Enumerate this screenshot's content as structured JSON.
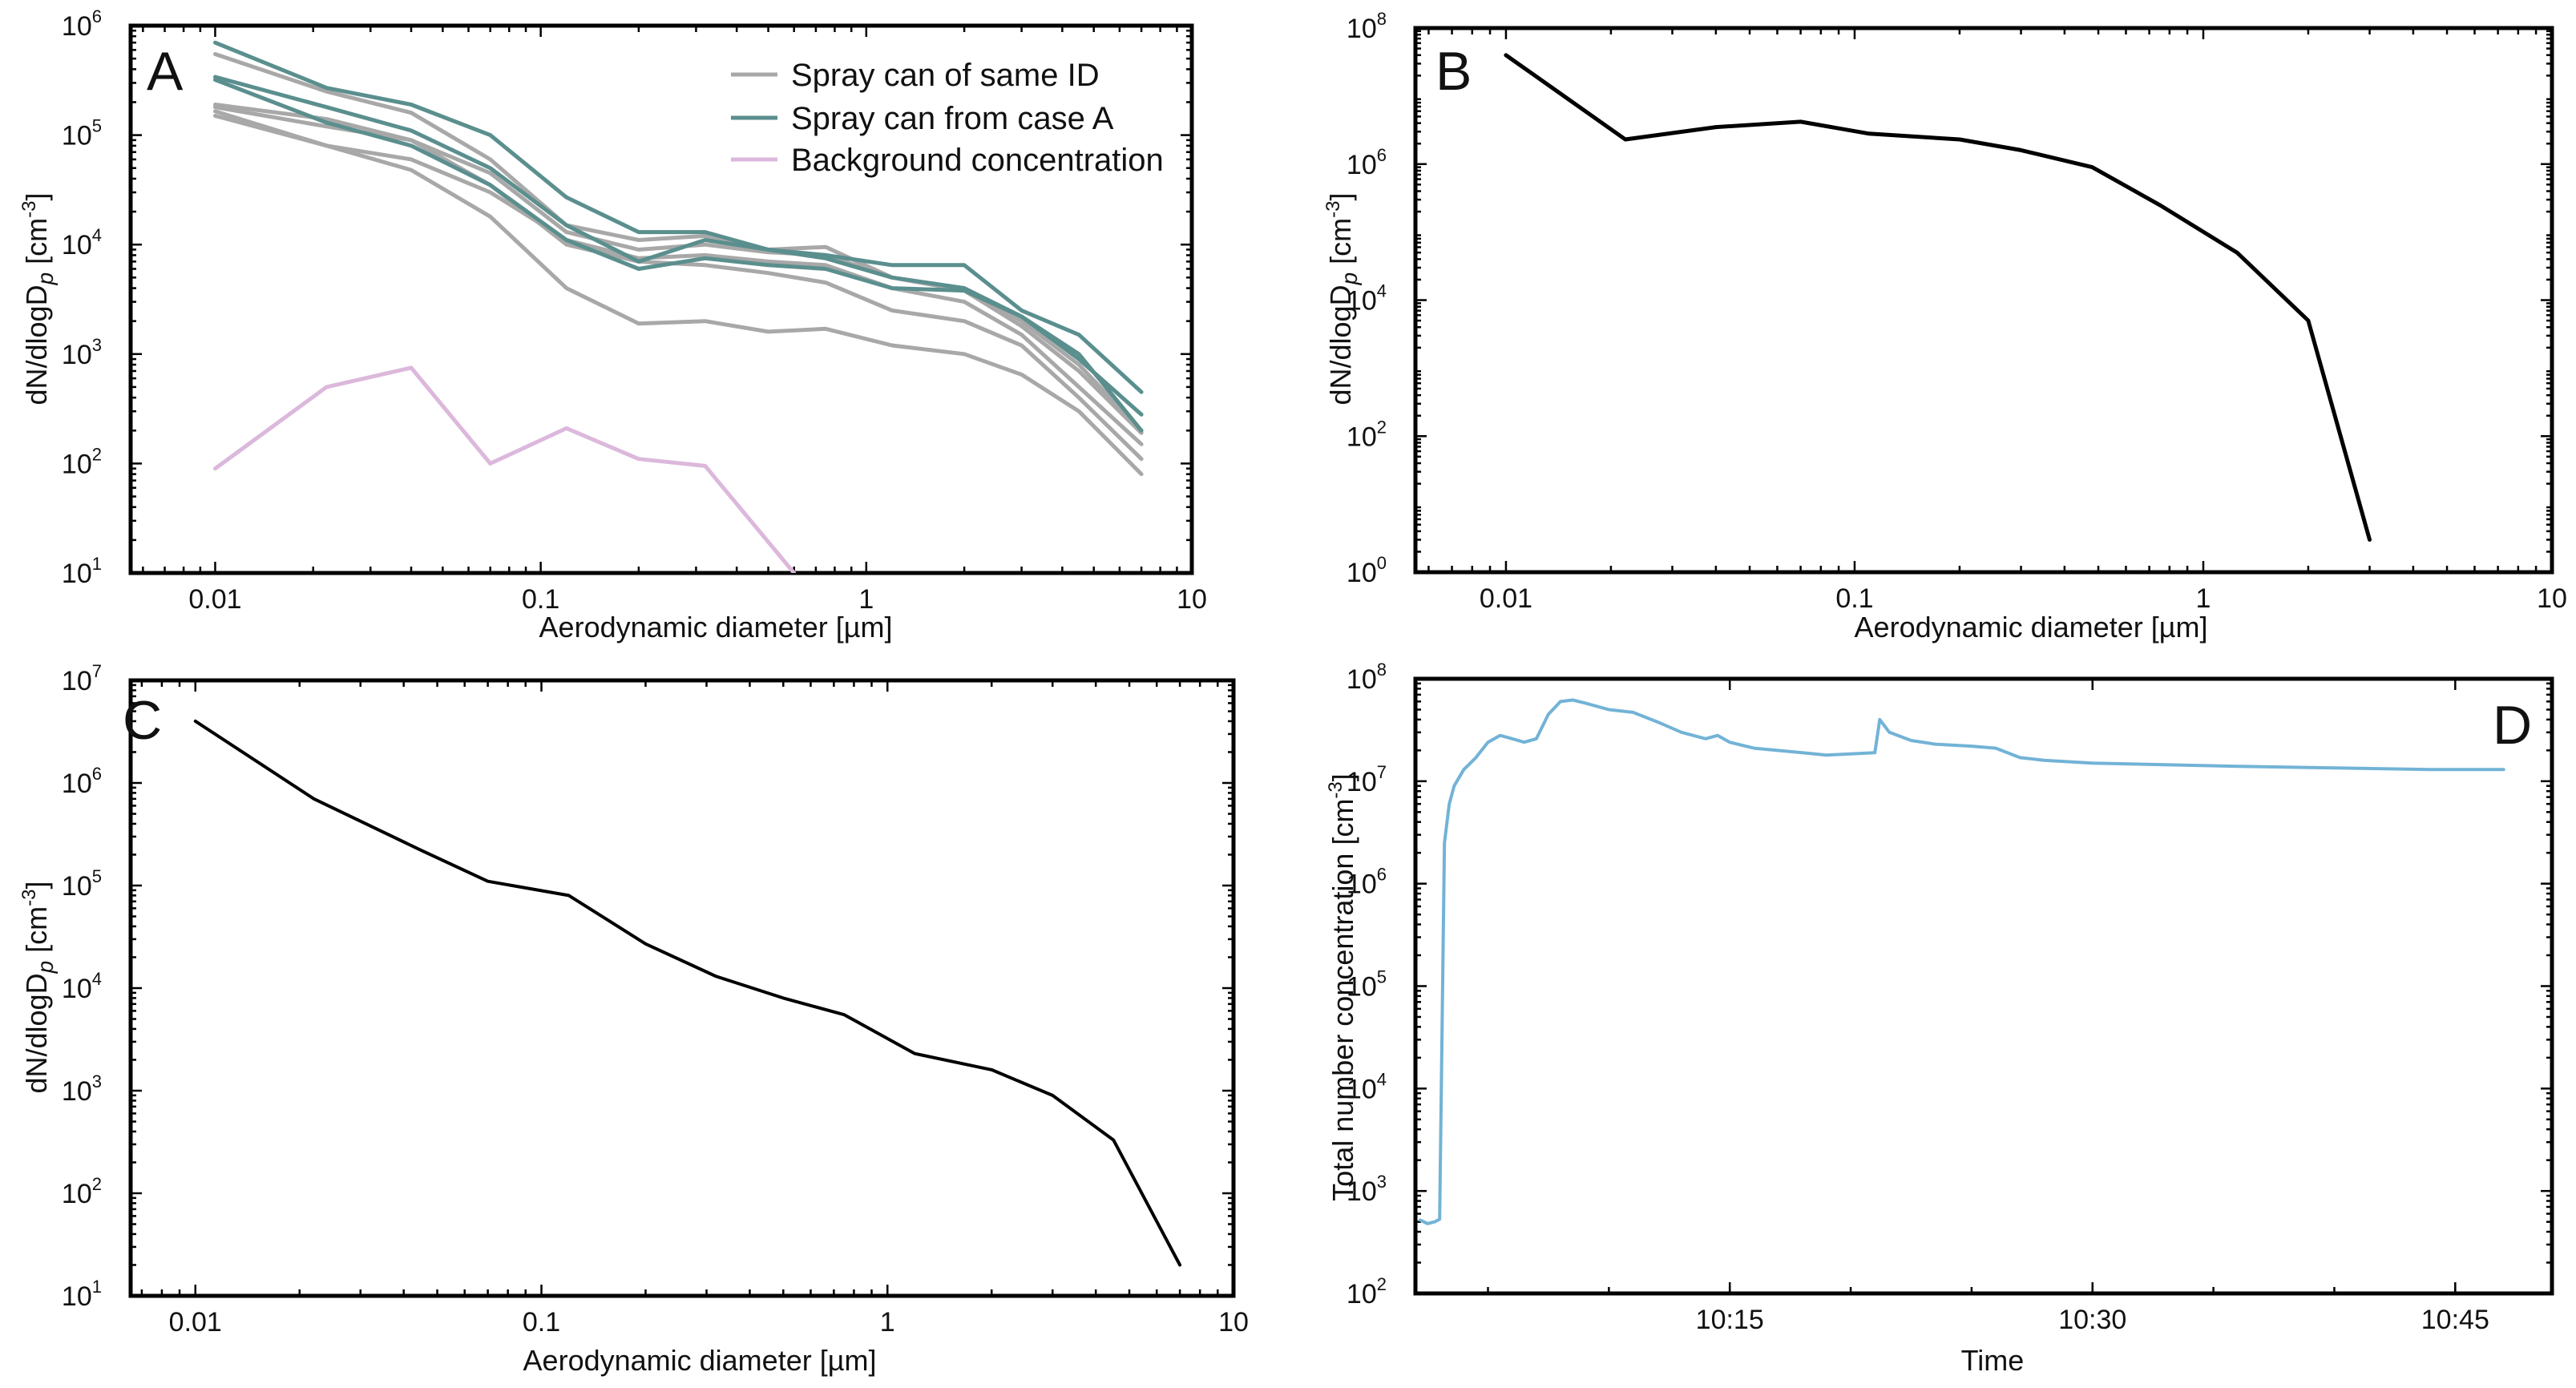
{
  "figure": {
    "panels": [
      "A",
      "B",
      "C",
      "D"
    ]
  },
  "chart_data": [
    {
      "panel": "A",
      "type": "line",
      "xscale": "log",
      "yscale": "log",
      "xlabel": "Aerodynamic diameter [µm]",
      "ylabel": "dN/dlogDp [cm-3]",
      "xlim": [
        0.0055,
        10
      ],
      "ylim": [
        10,
        1000000
      ],
      "xticks": [
        {
          "value": 0.01,
          "label": "0.01"
        },
        {
          "value": 0.1,
          "label": "0.1"
        },
        {
          "value": 1,
          "label": "1"
        },
        {
          "value": 10,
          "label": "10"
        }
      ],
      "yticks": [
        {
          "value": 10,
          "base": "10",
          "exp": "1"
        },
        {
          "value": 100,
          "base": "10",
          "exp": "2"
        },
        {
          "value": 1000,
          "base": "10",
          "exp": "3"
        },
        {
          "value": 10000,
          "base": "10",
          "exp": "4"
        },
        {
          "value": 100000,
          "base": "10",
          "exp": "5"
        },
        {
          "value": 1000000,
          "base": "10",
          "exp": "6"
        }
      ],
      "legend_position": "top-right",
      "legend": [
        {
          "label": "Spray can of same ID",
          "color": "#a8a8a8"
        },
        {
          "label": "Spray can from case A",
          "color": "#5a8f8e"
        },
        {
          "label": "Background concentration",
          "color": "#dcb8dc"
        }
      ],
      "series": [
        {
          "name": "Spray can of same ID",
          "color": "#a8a8a8",
          "x": [
            0.01,
            0.022,
            0.04,
            0.07,
            0.12,
            0.2,
            0.32,
            0.5,
            0.75,
            1.2,
            2,
            3,
            4.5,
            7
          ],
          "y": [
            550000,
            250000,
            160000,
            60000,
            15000,
            11000,
            12000,
            9000,
            9500,
            5000,
            4000,
            2000,
            800,
            200
          ]
        },
        {
          "name": "Spray can of same ID",
          "color": "#a8a8a8",
          "x": [
            0.01,
            0.022,
            0.04,
            0.07,
            0.12,
            0.2,
            0.32,
            0.5,
            0.75,
            1.2,
            2,
            3,
            4.5,
            7
          ],
          "y": [
            190000,
            140000,
            90000,
            45000,
            13000,
            9000,
            10000,
            8500,
            8000,
            5000,
            3800,
            1800,
            700,
            190
          ]
        },
        {
          "name": "Spray can of same ID",
          "color": "#a8a8a8",
          "x": [
            0.01,
            0.022,
            0.04,
            0.07,
            0.12,
            0.2,
            0.32,
            0.5,
            0.75,
            1.2,
            2,
            3,
            4.5,
            7
          ],
          "y": [
            165000,
            80000,
            60000,
            30000,
            11000,
            7500,
            8000,
            7000,
            6500,
            4000,
            3000,
            1500,
            500,
            150
          ]
        },
        {
          "name": "Spray can of same ID",
          "color": "#a8a8a8",
          "x": [
            0.01,
            0.022,
            0.04,
            0.07,
            0.12,
            0.2,
            0.32,
            0.5,
            0.75,
            1.2,
            2,
            3,
            4.5,
            7
          ],
          "y": [
            150000,
            80000,
            48000,
            18000,
            4000,
            1900,
            2000,
            1600,
            1700,
            1200,
            1000,
            650,
            300,
            80
          ]
        },
        {
          "name": "Spray can of same ID",
          "color": "#a8a8a8",
          "x": [
            0.01,
            0.022,
            0.04,
            0.07,
            0.12,
            0.2,
            0.32,
            0.5,
            0.75,
            1.2,
            2,
            3,
            4.5,
            7
          ],
          "y": [
            180000,
            120000,
            90000,
            35000,
            10000,
            7000,
            6500,
            5500,
            4500,
            2500,
            2000,
            1200,
            400,
            110
          ]
        },
        {
          "name": "Spray can from case A",
          "color": "#5a8f8e",
          "x": [
            0.01,
            0.022,
            0.04,
            0.07,
            0.12,
            0.2,
            0.32,
            0.5,
            0.75,
            1.2,
            2,
            3,
            4.5,
            7
          ],
          "y": [
            700000,
            270000,
            190000,
            100000,
            27000,
            13000,
            13000,
            9000,
            8000,
            6500,
            6500,
            2500,
            1500,
            450
          ]
        },
        {
          "name": "Spray can from case A",
          "color": "#5a8f8e",
          "x": [
            0.01,
            0.022,
            0.04,
            0.07,
            0.12,
            0.2,
            0.32,
            0.5,
            0.75,
            1.2,
            2,
            3,
            4.5,
            7
          ],
          "y": [
            340000,
            180000,
            110000,
            50000,
            15000,
            7000,
            11000,
            9000,
            7500,
            5000,
            4000,
            2200,
            900,
            280
          ]
        },
        {
          "name": "Spray can from case A",
          "color": "#5a8f8e",
          "x": [
            0.01,
            0.022,
            0.04,
            0.07,
            0.12,
            0.2,
            0.32,
            0.5,
            0.75,
            1.2,
            2,
            3,
            4.5,
            7
          ],
          "y": [
            320000,
            130000,
            80000,
            35000,
            11000,
            6000,
            7500,
            6500,
            6000,
            4000,
            3800,
            2200,
            1000,
            200
          ]
        },
        {
          "name": "Background concentration",
          "color": "#dcb8dc",
          "x": [
            0.01,
            0.022,
            0.04,
            0.07,
            0.12,
            0.2,
            0.32,
            0.6
          ],
          "y": [
            90,
            500,
            750,
            100,
            210,
            110,
            95,
            10
          ]
        }
      ]
    },
    {
      "panel": "B",
      "type": "line",
      "xscale": "log",
      "yscale": "log",
      "xlabel": "Aerodynamic diameter [µm]",
      "ylabel": "dN/dlogDp [cm-3]",
      "xlim": [
        0.0055,
        10
      ],
      "ylim": [
        1,
        100000000
      ],
      "xticks": [
        {
          "value": 0.01,
          "label": "0.01"
        },
        {
          "value": 0.1,
          "label": "0.1"
        },
        {
          "value": 1,
          "label": "1"
        },
        {
          "value": 10,
          "label": "10"
        }
      ],
      "yticks": [
        {
          "value": 1,
          "base": "10",
          "exp": "0"
        },
        {
          "value": 100,
          "base": "10",
          "exp": "2"
        },
        {
          "value": 10000,
          "base": "10",
          "exp": "4"
        },
        {
          "value": 1000000,
          "base": "10",
          "exp": "6"
        },
        {
          "value": 100000000,
          "base": "10",
          "exp": "8"
        }
      ],
      "series": [
        {
          "name": "B",
          "color": "#000000",
          "x": [
            0.01,
            0.022,
            0.04,
            0.07,
            0.11,
            0.2,
            0.3,
            0.48,
            0.75,
            1.25,
            2,
            3
          ],
          "y": [
            40000000,
            2300000,
            3500000,
            4200000,
            2800000,
            2300000,
            1600000,
            900000,
            250000,
            50000,
            5000,
            3
          ]
        }
      ]
    },
    {
      "panel": "C",
      "type": "line",
      "xscale": "log",
      "yscale": "log",
      "xlabel": "Aerodynamic diameter [µm]",
      "ylabel": "dN/dlogDp [cm-3]",
      "xlim": [
        0.0065,
        10
      ],
      "ylim": [
        10,
        10000000
      ],
      "xticks": [
        {
          "value": 0.01,
          "label": "0.01"
        },
        {
          "value": 0.1,
          "label": "0.1"
        },
        {
          "value": 1,
          "label": "1"
        },
        {
          "value": 10,
          "label": "10"
        }
      ],
      "yticks": [
        {
          "value": 10,
          "base": "10",
          "exp": "1"
        },
        {
          "value": 100,
          "base": "10",
          "exp": "2"
        },
        {
          "value": 1000,
          "base": "10",
          "exp": "3"
        },
        {
          "value": 10000,
          "base": "10",
          "exp": "4"
        },
        {
          "value": 100000,
          "base": "10",
          "exp": "5"
        },
        {
          "value": 1000000,
          "base": "10",
          "exp": "6"
        },
        {
          "value": 10000000,
          "base": "10",
          "exp": "7"
        }
      ],
      "series": [
        {
          "name": "C",
          "color": "#000000",
          "x": [
            0.01,
            0.022,
            0.045,
            0.07,
            0.12,
            0.2,
            0.32,
            0.5,
            0.75,
            1.2,
            2,
            3,
            4.5,
            7
          ],
          "y": [
            4000000,
            700000,
            220000,
            110000,
            80000,
            27000,
            13000,
            8000,
            5500,
            2300,
            1600,
            900,
            330,
            20
          ]
        }
      ]
    },
    {
      "panel": "D",
      "type": "line",
      "xscale": "linear",
      "yscale": "log",
      "xlabel": "Time",
      "ylabel": "Total number concentration [cm-3]",
      "xlim": [
        2,
        49
      ],
      "ylim": [
        100,
        100000000
      ],
      "xticks": [
        {
          "value": 15,
          "label": "10:15"
        },
        {
          "value": 30,
          "label": "10:30"
        },
        {
          "value": 45,
          "label": "10:45"
        }
      ],
      "yticks": [
        {
          "value": 100,
          "base": "10",
          "exp": "2"
        },
        {
          "value": 1000,
          "base": "10",
          "exp": "3"
        },
        {
          "value": 10000,
          "base": "10",
          "exp": "4"
        },
        {
          "value": 100000,
          "base": "10",
          "exp": "5"
        },
        {
          "value": 1000000,
          "base": "10",
          "exp": "6"
        },
        {
          "value": 10000000,
          "base": "10",
          "exp": "7"
        },
        {
          "value": 100000000,
          "base": "10",
          "exp": "8"
        }
      ],
      "series": [
        {
          "name": "D",
          "color": "#72b3d6",
          "x": [
            2.2,
            2.5,
            2.8,
            3.0,
            3.2,
            3.4,
            3.6,
            4.0,
            4.5,
            5.0,
            5.5,
            6.0,
            6.5,
            7.0,
            7.5,
            8.0,
            8.5,
            9.0,
            10.0,
            11.0,
            12.0,
            13.0,
            14.0,
            14.5,
            15.0,
            16.0,
            18.0,
            19.0,
            20.0,
            21.0,
            21.2,
            21.6,
            22.5,
            23.5,
            25.0,
            26.0,
            27.0,
            28.0,
            30.0,
            33.0,
            36.0,
            40.0,
            44.0,
            47.0
          ],
          "y": [
            520,
            480,
            500,
            530,
            2500000,
            6000000,
            9000000,
            13000000,
            17000000,
            24000000,
            28000000,
            26000000,
            24000000,
            26000000,
            45000000,
            60000000,
            62000000,
            58000000,
            50000000,
            47000000,
            38000000,
            30000000,
            26000000,
            28000000,
            24000000,
            21000000,
            19000000,
            18000000,
            18500000,
            19000000,
            40000000,
            30000000,
            25000000,
            23000000,
            22000000,
            21000000,
            17000000,
            16000000,
            15000000,
            14500000,
            14000000,
            13500000,
            13000000,
            13000000
          ]
        }
      ]
    }
  ]
}
